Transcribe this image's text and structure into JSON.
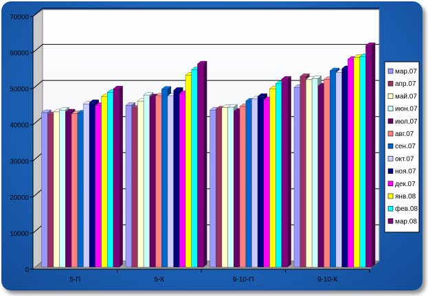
{
  "chart_data": {
    "type": "bar",
    "categories": [
      "5-П",
      "5-К",
      "9-10-П",
      "9-10-К"
    ],
    "ylim": [
      0,
      70000
    ],
    "yticks": [
      "0",
      "10000",
      "20000",
      "30000",
      "40000",
      "50000",
      "60000",
      "70000"
    ],
    "legend_position": "right",
    "grid": true,
    "style": "3d",
    "series": [
      {
        "name": "мар.07",
        "color": "#9999ff",
        "values": [
          42800,
          44800,
          43500,
          49800
        ]
      },
      {
        "name": "апр.07",
        "color": "#993366",
        "values": [
          42200,
          44000,
          43800,
          52800
        ]
      },
      {
        "name": "май.07",
        "color": "#ffffcc",
        "values": [
          43000,
          46000,
          44200,
          52000
        ]
      },
      {
        "name": "июн.07",
        "color": "#ccffff",
        "values": [
          43500,
          47600,
          44300,
          52200
        ]
      },
      {
        "name": "июл.07",
        "color": "#660066",
        "values": [
          43000,
          47200,
          43200,
          50200
        ]
      },
      {
        "name": "авг.07",
        "color": "#ff8080",
        "values": [
          42500,
          47400,
          44500,
          52000
        ]
      },
      {
        "name": "сен.07",
        "color": "#0066cc",
        "values": [
          42700,
          49300,
          46000,
          54400
        ]
      },
      {
        "name": "окт.07",
        "color": "#ccccff",
        "values": [
          45200,
          47400,
          46600,
          53900
        ]
      },
      {
        "name": "ноя.07",
        "color": "#000080",
        "values": [
          45600,
          49000,
          47300,
          55000
        ]
      },
      {
        "name": "дек.07",
        "color": "#ff00ff",
        "values": [
          44800,
          48100,
          46400,
          57600
        ]
      },
      {
        "name": "янв.08",
        "color": "#ffff00",
        "values": [
          47200,
          53200,
          49400,
          58100
        ]
      },
      {
        "name": "фев.08",
        "color": "#00ffff",
        "values": [
          48400,
          54700,
          50800,
          58300
        ]
      },
      {
        "name": "мар.08",
        "color": "#800080",
        "values": [
          49400,
          56300,
          52100,
          61400
        ]
      }
    ]
  }
}
